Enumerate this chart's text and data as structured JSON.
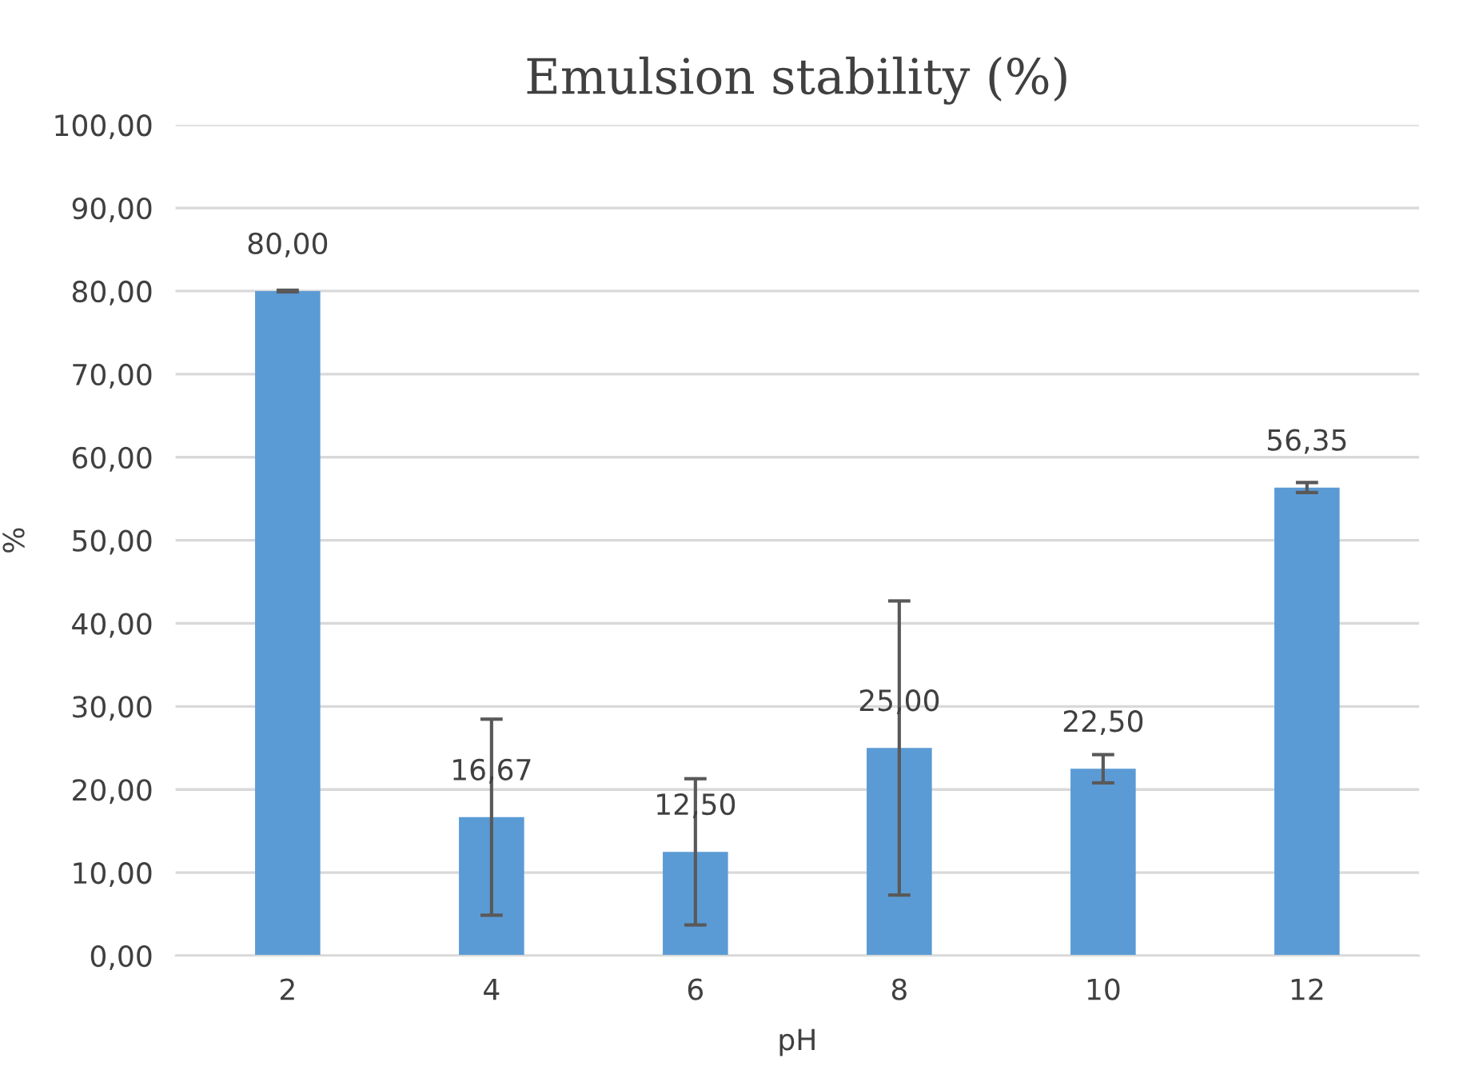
{
  "chart_data": {
    "type": "bar",
    "title": "Emulsion stability (%)",
    "xlabel": "pH",
    "ylabel": "%",
    "categories": [
      "2",
      "4",
      "6",
      "8",
      "10",
      "12"
    ],
    "values": [
      80.0,
      16.67,
      12.5,
      25.0,
      22.5,
      56.35
    ],
    "value_labels": [
      "80,00",
      "16,67",
      "12,50",
      "25,00",
      "22,50",
      "56,35"
    ],
    "errors": [
      0.1,
      11.8,
      8.8,
      17.7,
      1.7,
      0.6
    ],
    "color": "#5b9bd5",
    "ylim": [
      0,
      100
    ],
    "yticks": [
      {
        "value": 0,
        "label": "0,00"
      },
      {
        "value": 10,
        "label": "10,00"
      },
      {
        "value": 20,
        "label": "20,00"
      },
      {
        "value": 30,
        "label": "30,00"
      },
      {
        "value": 40,
        "label": "40,00"
      },
      {
        "value": 50,
        "label": "50,00"
      },
      {
        "value": 60,
        "label": "60,00"
      },
      {
        "value": 70,
        "label": "70,00"
      },
      {
        "value": 80,
        "label": "80,00"
      },
      {
        "value": 90,
        "label": "90,00"
      },
      {
        "value": 100,
        "label": "100,00"
      }
    ],
    "grid": "y",
    "legend": false
  }
}
